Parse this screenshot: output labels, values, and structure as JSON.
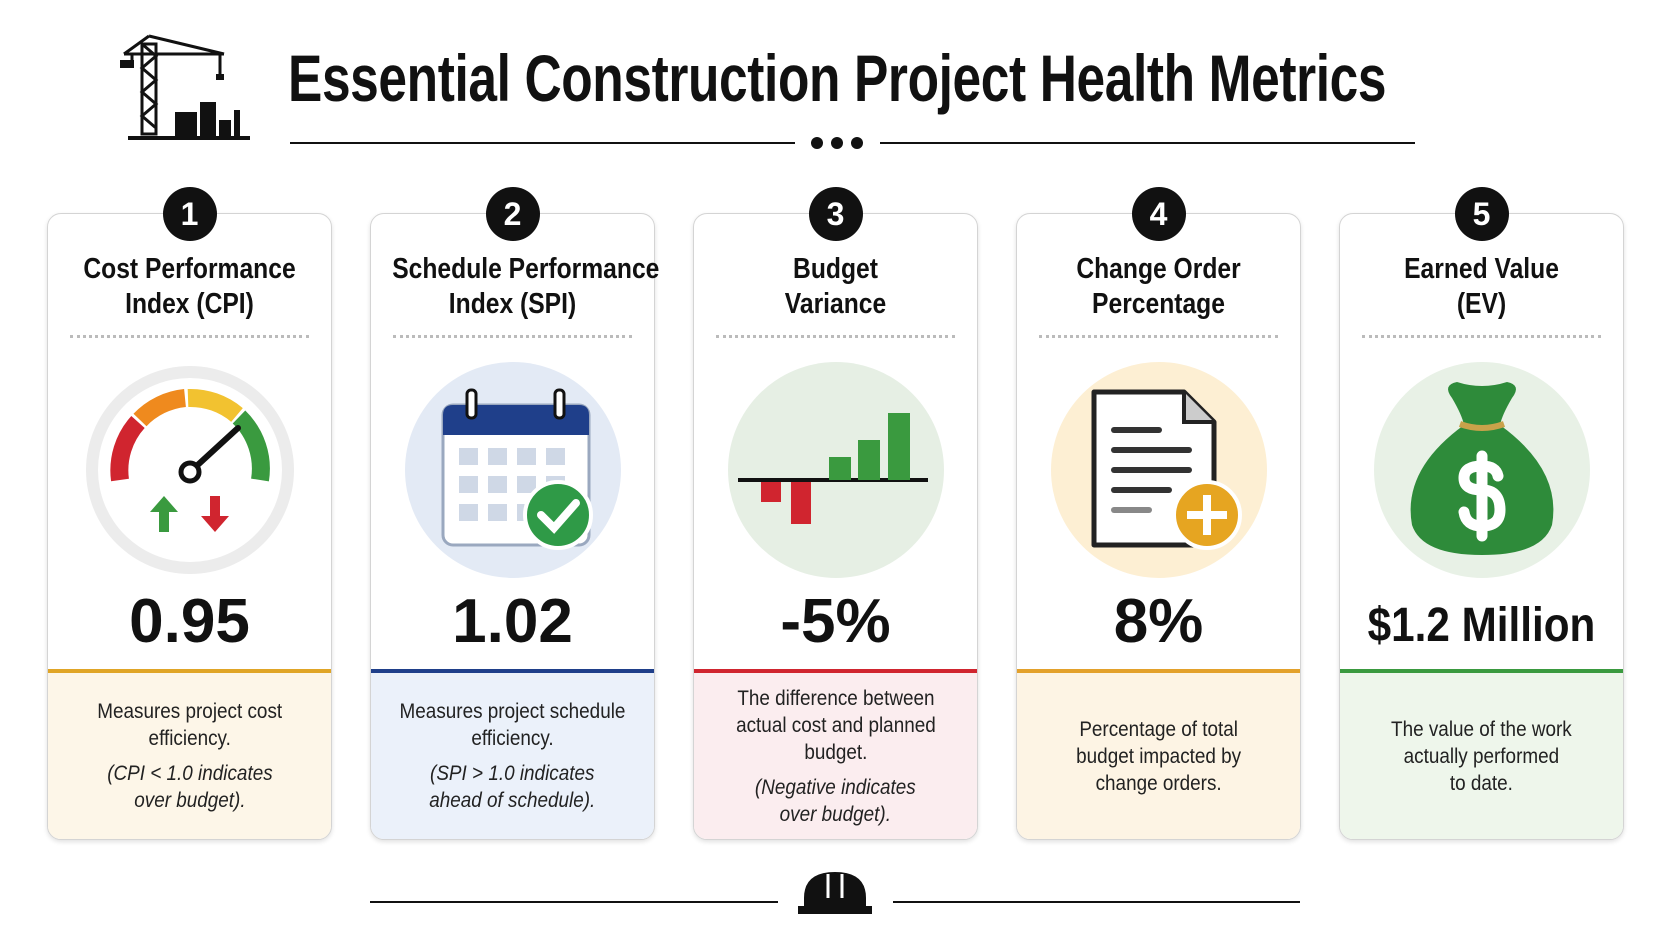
{
  "header": {
    "title": "Essential Construction Project Health Metrics"
  },
  "cards": [
    {
      "number": "1",
      "title": [
        "Cost Performance",
        "Index (CPI)"
      ],
      "value": "0.95",
      "description": [
        "Measures project cost",
        "efficiency."
      ],
      "note": [
        "(CPI < 1.0 indicates",
        "over budget)."
      ]
    },
    {
      "number": "2",
      "title": [
        "Schedule Performance",
        "Index (SPI)"
      ],
      "value": "1.02",
      "description": [
        "Measures project schedule",
        "efficiency."
      ],
      "note": [
        "(SPI > 1.0 indicates",
        "ahead of schedule)."
      ]
    },
    {
      "number": "3",
      "title": [
        "Budget",
        "Variance"
      ],
      "value": "-5%",
      "description": [
        "The difference between",
        "actual cost and planned",
        "budget."
      ],
      "note": [
        "(Negative indicates",
        "over budget)."
      ]
    },
    {
      "number": "4",
      "title": [
        "Change Order",
        "Percentage"
      ],
      "value": "8%",
      "description": [
        "Percentage of total",
        "budget impacted by",
        "change orders."
      ]
    },
    {
      "number": "5",
      "title": [
        "Earned Value",
        "(EV)"
      ],
      "value": "$1.2 Million",
      "description": [
        "The value of the work",
        "actually performed",
        "to date."
      ]
    }
  ]
}
